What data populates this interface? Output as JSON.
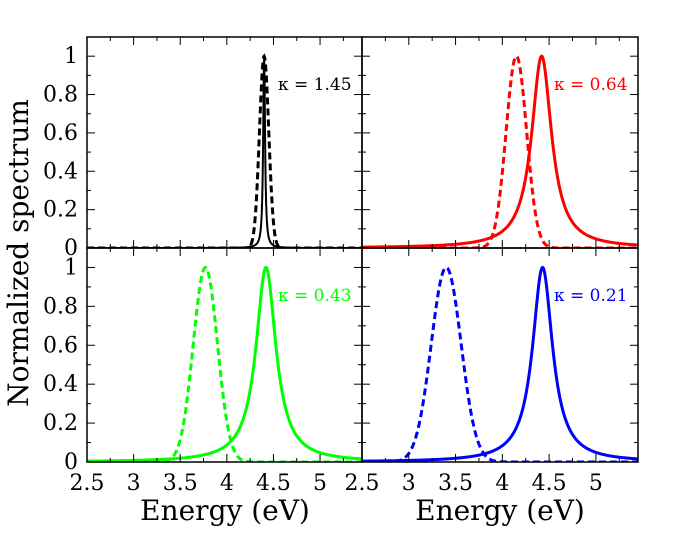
{
  "chart_data": {
    "type": "line",
    "ylabel": "Normalized spectrum",
    "xlabel": "Energy (eV)",
    "xlim": [
      2.5,
      5.45
    ],
    "ylim": [
      0,
      1.1
    ],
    "xticks": [
      2.5,
      3,
      3.5,
      4,
      4.5,
      5
    ],
    "xtick_labels": [
      "2.5",
      "3",
      "3.5",
      "4",
      "4.5",
      "5"
    ],
    "yticks": [
      0,
      0.2,
      0.4,
      0.6,
      0.8,
      1
    ],
    "ytick_labels": [
      "0",
      "0.2",
      "0.4",
      "0.6",
      "0.8",
      "1"
    ],
    "panels": [
      {
        "name": "top-left",
        "color": "#000000",
        "label": "κ = 1.45",
        "series": [
          {
            "name": "solid",
            "style": "solid",
            "shape": "lorentzian",
            "peak": 4.4,
            "width": 0.012
          },
          {
            "name": "dashed",
            "style": "dashed",
            "shape": "gaussian",
            "peak": 4.4,
            "width": 0.05
          }
        ]
      },
      {
        "name": "top-right",
        "color": "#ff0000",
        "label": "κ = 0.64",
        "series": [
          {
            "name": "solid",
            "style": "solid",
            "shape": "lorentzian",
            "peak": 4.42,
            "width": 0.13
          },
          {
            "name": "dashed",
            "style": "dashed",
            "shape": "gaussian",
            "peak": 4.15,
            "width": 0.11
          }
        ]
      },
      {
        "name": "bottom-left",
        "color": "#00ff00",
        "label": "κ = 0.43",
        "series": [
          {
            "name": "solid",
            "style": "solid",
            "shape": "lorentzian",
            "peak": 4.42,
            "width": 0.13
          },
          {
            "name": "dashed",
            "style": "dashed",
            "shape": "gaussian",
            "peak": 3.77,
            "width": 0.13
          }
        ]
      },
      {
        "name": "bottom-right",
        "color": "#0000ff",
        "label": "κ = 0.21",
        "series": [
          {
            "name": "solid",
            "style": "solid",
            "shape": "lorentzian",
            "peak": 4.43,
            "width": 0.13
          },
          {
            "name": "dashed",
            "style": "dashed",
            "shape": "gaussian",
            "peak": 3.4,
            "width": 0.16
          }
        ]
      }
    ]
  }
}
